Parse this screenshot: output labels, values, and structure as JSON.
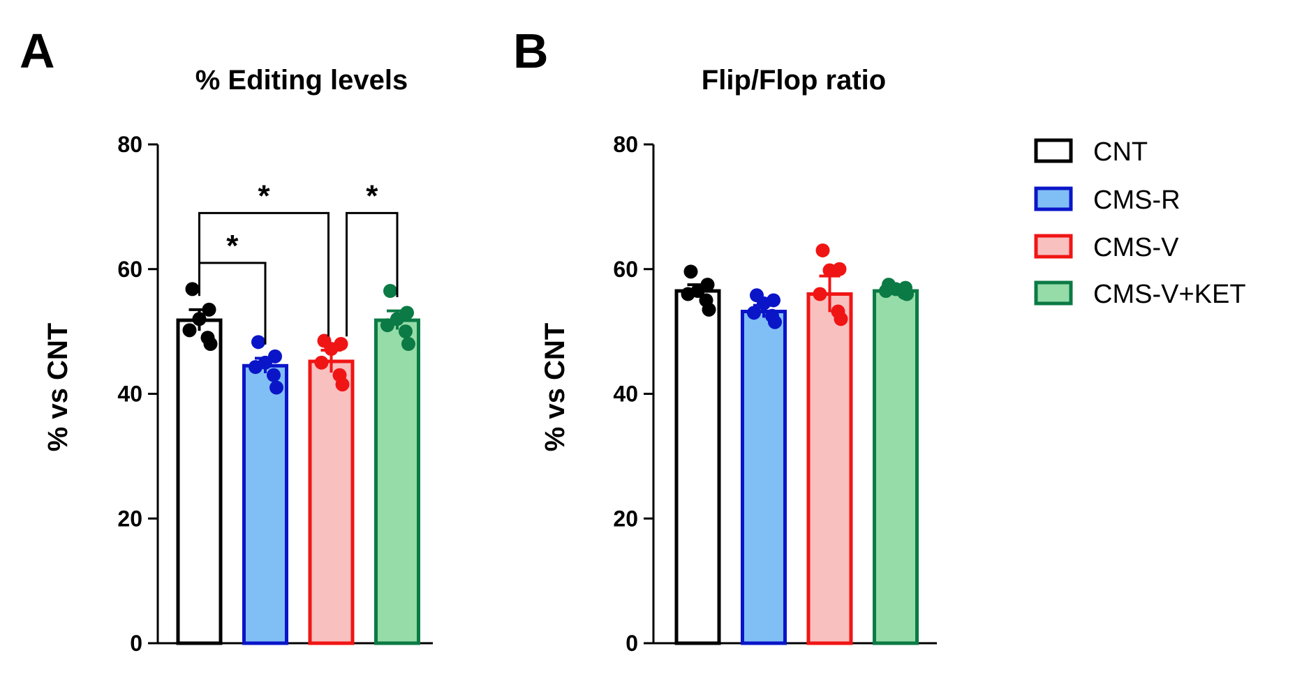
{
  "panels": [
    {
      "letter": "A"
    },
    {
      "letter": "B"
    }
  ],
  "legend": {
    "entries": [
      {
        "label": "CNT",
        "fill": "#ffffff",
        "stroke": "#000000"
      },
      {
        "label": "CMS-R",
        "fill": "#80bff5",
        "stroke": "#0a15c8"
      },
      {
        "label": "CMS-V",
        "fill": "#f9c0c0",
        "stroke": "#f01515"
      },
      {
        "label": "CMS-V+KET",
        "fill": "#96dca8",
        "stroke": "#0b7a45"
      }
    ]
  },
  "chart_data": [
    {
      "type": "bar",
      "title": "% Editing levels",
      "xlabel": "",
      "ylabel": "% vs CNT",
      "ylim": [
        0,
        80
      ],
      "yticks": [
        "0",
        "20",
        "40",
        "60",
        "80"
      ],
      "categories": [
        "CNT",
        "CMS-R",
        "CMS-V",
        "CMS-V+KET"
      ],
      "values": [
        51.8,
        44.5,
        45.2,
        51.8
      ],
      "errors": [
        1.7,
        1.2,
        1.8,
        1.5
      ],
      "points": [
        [
          56.8,
          53.5,
          52.0,
          50.2,
          49.0,
          48.0
        ],
        [
          48.3,
          46.0,
          45.0,
          44.3,
          43.0,
          41.0
        ],
        [
          48.5,
          48.0,
          47.2,
          45.0,
          43.0,
          41.5
        ],
        [
          56.5,
          53.0,
          52.0,
          51.0,
          50.0,
          48.0
        ]
      ],
      "significance": [
        {
          "from": 0,
          "to": 1,
          "label": "*",
          "level": 61
        },
        {
          "from": 0,
          "to": 2,
          "label": "*",
          "level": 69
        },
        {
          "from": 2,
          "to": 3,
          "label": "*",
          "level": 69
        }
      ]
    },
    {
      "type": "bar",
      "title": "Flip/Flop ratio",
      "xlabel": "",
      "ylabel": "% vs CNT",
      "ylim": [
        0,
        80
      ],
      "yticks": [
        "0",
        "20",
        "40",
        "60",
        "80"
      ],
      "categories": [
        "CNT",
        "CMS-R",
        "CMS-V",
        "CMS-V+KET"
      ],
      "values": [
        56.5,
        53.2,
        56.0,
        56.5
      ],
      "errors": [
        1.0,
        1.0,
        2.9,
        0.4
      ],
      "points": [
        [
          59.6,
          57.5,
          56.5,
          56.0,
          55.0,
          53.5
        ],
        [
          55.8,
          55.0,
          54.5,
          53.0,
          52.5,
          51.5
        ],
        [
          63.0,
          60.0,
          59.8,
          56.0,
          53.2,
          52.0
        ],
        [
          57.5,
          57.0,
          56.8,
          56.5,
          56.2,
          56.0
        ]
      ],
      "significance": []
    }
  ]
}
